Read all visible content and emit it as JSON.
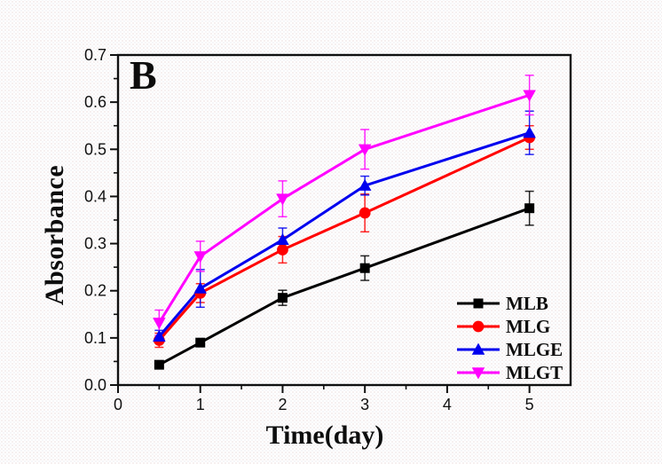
{
  "panel_label": "B",
  "chart_data": {
    "type": "line",
    "title": "",
    "xlabel": "Time(day)",
    "ylabel": "Absorbance",
    "xlim": [
      0,
      5.5
    ],
    "ylim": [
      0.0,
      0.7
    ],
    "grid": false,
    "legend_position": "lower-right-inside",
    "x_tick_labels": [
      "0",
      "1",
      "2",
      "3",
      "4",
      "5"
    ],
    "x_tick_values": [
      0,
      1,
      2,
      3,
      4,
      5
    ],
    "x_minor_tick_values": [
      0.5,
      1.5,
      2.5,
      3.5,
      4.5
    ],
    "y_tick_labels": [
      "0.0",
      "0.1",
      "0.2",
      "0.3",
      "0.4",
      "0.5",
      "0.6",
      "0.7"
    ],
    "y_tick_values": [
      0.0,
      0.1,
      0.2,
      0.3,
      0.4,
      0.5,
      0.6,
      0.7
    ],
    "y_minor_step": 0.05,
    "x": [
      0.5,
      1,
      2,
      3,
      5
    ],
    "series": [
      {
        "name": "MLB",
        "color": "#000000",
        "marker": "square",
        "values": [
          0.043,
          0.09,
          0.185,
          0.248,
          0.375
        ],
        "errors": [
          0.008,
          0.008,
          0.016,
          0.026,
          0.036
        ]
      },
      {
        "name": "MLG",
        "color": "#ff0000",
        "marker": "circle",
        "values": [
          0.095,
          0.195,
          0.287,
          0.365,
          0.525
        ],
        "errors": [
          0.015,
          0.02,
          0.028,
          0.04,
          0.025
        ]
      },
      {
        "name": "MLGE",
        "color": "#0000ee",
        "marker": "triangle-up",
        "values": [
          0.103,
          0.205,
          0.308,
          0.423,
          0.535
        ],
        "errors": [
          0.013,
          0.04,
          0.025,
          0.02,
          0.046
        ]
      },
      {
        "name": "MLGT",
        "color": "#ff00ff",
        "marker": "triangle-down",
        "values": [
          0.132,
          0.273,
          0.395,
          0.5,
          0.615
        ],
        "errors": [
          0.027,
          0.032,
          0.038,
          0.042,
          0.042
        ]
      }
    ]
  }
}
